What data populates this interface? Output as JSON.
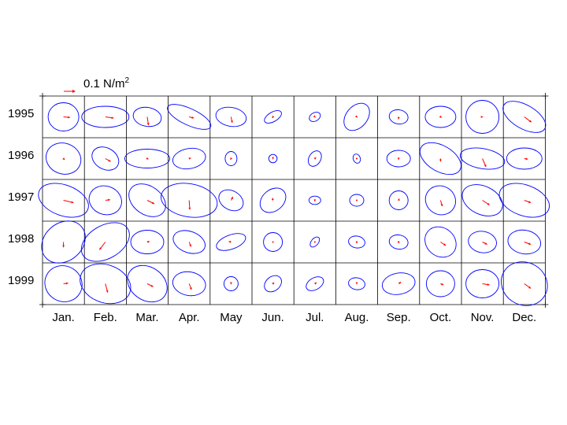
{
  "chart_data": {
    "type": "ellipse-grid",
    "legend": {
      "label": "0.1 N/m",
      "superscript": "2",
      "arrow_color": "#ff0000",
      "reference_value": 0.1,
      "unit": "N/m²"
    },
    "years": [
      "1995",
      "1996",
      "1997",
      "1998",
      "1999"
    ],
    "months": [
      "Jan.",
      "Feb.",
      "Mar.",
      "Apr.",
      "May",
      "Jun.",
      "Jul.",
      "Aug.",
      "Sep.",
      "Oct.",
      "Nov.",
      "Dec."
    ],
    "ellipse_color": "#0000ff",
    "arrow_color": "#ff0000",
    "grid": true,
    "ellipses": [
      [
        [
          0.13,
          0.12,
          0
        ],
        [
          0.2,
          0.09,
          0
        ],
        [
          0.08,
          0.12,
          -80
        ],
        [
          0.2,
          0.07,
          25
        ],
        [
          0.08,
          0.13,
          -80
        ],
        [
          0.08,
          0.04,
          -30
        ],
        [
          0.05,
          0.035,
          -30
        ],
        [
          0.09,
          0.13,
          40
        ],
        [
          0.06,
          0.08,
          -80
        ],
        [
          0.13,
          0.09,
          0
        ],
        [
          0.14,
          0.14,
          0
        ],
        [
          0.2,
          0.1,
          30
        ]
      ],
      [
        [
          0.13,
          0.15,
          -70
        ],
        [
          0.12,
          0.09,
          30
        ],
        [
          0.19,
          0.08,
          0
        ],
        [
          0.14,
          0.085,
          -10
        ],
        [
          0.05,
          0.06,
          0
        ],
        [
          0.035,
          0.035,
          0
        ],
        [
          0.05,
          0.07,
          30
        ],
        [
          0.03,
          0.04,
          -20
        ],
        [
          0.1,
          0.07,
          0
        ],
        [
          0.19,
          0.11,
          30
        ],
        [
          0.085,
          0.19,
          -80
        ],
        [
          0.15,
          0.09,
          0
        ]
      ],
      [
        [
          0.22,
          0.13,
          20
        ],
        [
          0.12,
          0.14,
          -70
        ],
        [
          0.17,
          0.12,
          35
        ],
        [
          0.14,
          0.24,
          -80
        ],
        [
          0.08,
          0.11,
          -60
        ],
        [
          0.09,
          0.12,
          50
        ],
        [
          0.05,
          0.035,
          0
        ],
        [
          0.06,
          0.05,
          0
        ],
        [
          0.08,
          0.08,
          0
        ],
        [
          0.12,
          0.13,
          -60
        ],
        [
          0.18,
          0.12,
          25
        ],
        [
          0.22,
          0.13,
          20
        ]
      ],
      [
        [
          0.2,
          0.16,
          -40
        ],
        [
          0.22,
          0.14,
          -30
        ],
        [
          0.14,
          0.1,
          0
        ],
        [
          0.09,
          0.14,
          -70
        ],
        [
          0.13,
          0.06,
          -20
        ],
        [
          0.08,
          0.08,
          0
        ],
        [
          0.03,
          0.05,
          40
        ],
        [
          0.05,
          0.07,
          -80
        ],
        [
          0.06,
          0.08,
          -80
        ],
        [
          0.14,
          0.12,
          40
        ],
        [
          0.12,
          0.09,
          10
        ],
        [
          0.14,
          0.1,
          10
        ]
      ],
      [
        [
          0.15,
          0.16,
          -60
        ],
        [
          0.16,
          0.22,
          -70
        ],
        [
          0.18,
          0.14,
          35
        ],
        [
          0.1,
          0.14,
          -80
        ],
        [
          0.06,
          0.06,
          0
        ],
        [
          0.08,
          0.06,
          -40
        ],
        [
          0.08,
          0.05,
          -30
        ],
        [
          0.05,
          0.07,
          -80
        ],
        [
          0.14,
          0.09,
          -10
        ],
        [
          0.12,
          0.11,
          0
        ],
        [
          0.14,
          0.12,
          0
        ],
        [
          0.18,
          0.2,
          -60
        ]
      ]
    ],
    "arrows": [
      [
        [
          0.055,
          0.005
        ],
        [
          0.07,
          0.01
        ],
        [
          0.01,
          0.07
        ],
        [
          0.04,
          0.01
        ],
        [
          0.01,
          0.05
        ],
        [
          -0.005,
          0.01
        ],
        [
          0.005,
          0.005
        ],
        [
          0.005,
          0.005
        ],
        [
          0.0,
          0.02
        ],
        [
          0.01,
          0.005
        ],
        [
          0.005,
          0.0
        ],
        [
          0.06,
          0.045
        ]
      ],
      [
        [
          0.01,
          0.01
        ],
        [
          0.045,
          0.025
        ],
        [
          0.01,
          0.005
        ],
        [
          0.015,
          -0.005
        ],
        [
          -0.005,
          0.01
        ],
        [
          0.0,
          0.005
        ],
        [
          0.01,
          -0.01
        ],
        [
          0.0,
          0.0
        ],
        [
          0.0,
          0.01
        ],
        [
          0.0,
          0.025
        ],
        [
          0.03,
          0.07
        ],
        [
          0.03,
          0.005
        ]
      ],
      [
        [
          0.085,
          0.02
        ],
        [
          0.04,
          -0.005
        ],
        [
          0.06,
          0.03
        ],
        [
          0.005,
          0.08
        ],
        [
          0.015,
          -0.03
        ],
        [
          -0.005,
          -0.02
        ],
        [
          0.0,
          0.01
        ],
        [
          0.0,
          0.0
        ],
        [
          0.005,
          -0.015
        ],
        [
          0.015,
          0.05
        ],
        [
          0.06,
          0.04
        ],
        [
          0.055,
          0.02
        ]
      ],
      [
        [
          0.0,
          0.045
        ],
        [
          -0.05,
          0.065
        ],
        [
          0.02,
          -0.005
        ],
        [
          0.015,
          0.04
        ],
        [
          -0.02,
          -0.005
        ],
        [
          0.0,
          0.0
        ],
        [
          0.0,
          0.0
        ],
        [
          0.0,
          -0.01
        ],
        [
          0.005,
          0.01
        ],
        [
          0.045,
          0.03
        ],
        [
          0.04,
          0.02
        ],
        [
          0.055,
          0.02
        ]
      ],
      [
        [
          0.04,
          -0.005
        ],
        [
          0.02,
          0.075
        ],
        [
          0.05,
          0.025
        ],
        [
          0.02,
          0.05
        ],
        [
          0.0,
          0.005
        ],
        [
          0.01,
          -0.01
        ],
        [
          0.015,
          -0.01
        ],
        [
          0.0,
          0.005
        ],
        [
          0.02,
          -0.015
        ],
        [
          0.025,
          0.01
        ],
        [
          0.06,
          0.01
        ],
        [
          0.055,
          0.04
        ]
      ]
    ]
  }
}
